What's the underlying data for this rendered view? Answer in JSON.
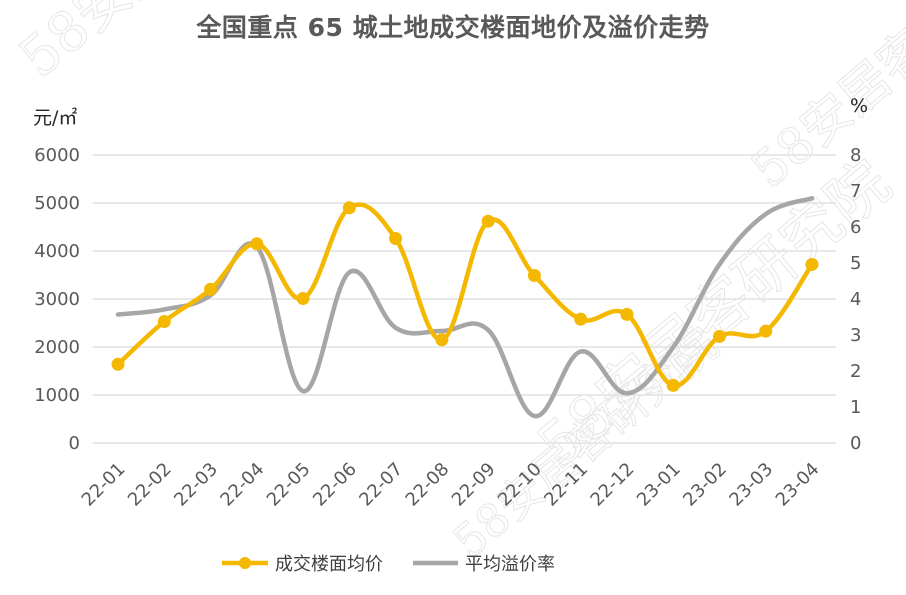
{
  "chart_data": {
    "type": "line",
    "title": "全国重点 65 城土地成交楼面地价及溢价走势",
    "y_left_unit": "元/㎡",
    "y_right_unit": "%",
    "y_left_ticks": [
      "0",
      "1000",
      "2000",
      "3000",
      "4000",
      "5000",
      "6000"
    ],
    "y_right_ticks": [
      "0",
      "1",
      "2",
      "3",
      "4",
      "5",
      "6",
      "7",
      "8"
    ],
    "y_left_lim": [
      0,
      6000
    ],
    "y_right_lim": [
      0,
      8
    ],
    "categories": [
      "22-01",
      "22-02",
      "22-03",
      "22-04",
      "22-05",
      "22-06",
      "22-07",
      "22-08",
      "22-09",
      "22-10",
      "22-11",
      "22-12",
      "23-01",
      "23-02",
      "23-03",
      "23-04"
    ],
    "series": [
      {
        "name": "成交楼面均价",
        "axis": "left",
        "color": "#F5B800",
        "markers": true,
        "values": [
          1640,
          2530,
          3200,
          4150,
          3010,
          4900,
          4260,
          2150,
          4620,
          3490,
          2580,
          2680,
          1200,
          2220,
          2330,
          3720
        ]
      },
      {
        "name": "平均溢价率",
        "axis": "right",
        "color": "#A6A6A6",
        "markers": false,
        "values": [
          3.57,
          3.71,
          4.1,
          5.45,
          1.44,
          4.74,
          3.2,
          3.11,
          3.14,
          0.75,
          2.54,
          1.38,
          2.66,
          4.96,
          6.36,
          6.8
        ]
      }
    ],
    "grid": true,
    "legend": "bottom-center",
    "watermark": "58安居客研究院"
  }
}
